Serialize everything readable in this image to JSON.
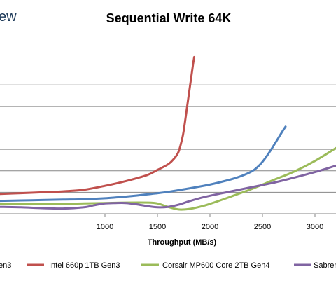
{
  "brand_fragment": "ew",
  "chart_data": {
    "type": "line",
    "title": "Sequential Write 64K",
    "xlabel": "Throughput (MB/s)",
    "ylabel": "",
    "xlim": [
      0,
      3200
    ],
    "x_ticks": [
      1000,
      1500,
      2000,
      2500,
      3000
    ],
    "x_tick_labels": [
      "1000",
      "1500",
      "2000",
      "2500",
      "3000"
    ],
    "grid": "horizontal",
    "legend_position": "bottom",
    "series": [
      {
        "name": "...en3",
        "display_label": "en3",
        "color": "#4f81bd",
        "x": [
          0,
          200,
          400,
          600,
          800,
          1000,
          1200,
          1400,
          1600,
          1800,
          2000,
          2200,
          2300,
          2400,
          2450,
          2500,
          2560,
          2620,
          2680,
          2720
        ],
        "y": [
          0.6,
          0.62,
          0.64,
          0.66,
          0.68,
          0.72,
          0.8,
          0.9,
          1.02,
          1.18,
          1.36,
          1.6,
          1.76,
          1.98,
          2.16,
          2.42,
          2.82,
          3.28,
          3.76,
          4.06
        ]
      },
      {
        "name": "Intel 660p 1TB Gen3",
        "display_label": "Intel 660p 1TB Gen3",
        "color": "#c0504d",
        "x": [
          0,
          200,
          400,
          600,
          800,
          1000,
          1200,
          1400,
          1500,
          1600,
          1650,
          1700,
          1740,
          1760,
          1780,
          1800,
          1820,
          1840,
          1850
        ],
        "y": [
          0.92,
          0.96,
          1.0,
          1.04,
          1.12,
          1.3,
          1.52,
          1.8,
          2.04,
          2.3,
          2.52,
          2.88,
          3.6,
          4.2,
          4.9,
          5.6,
          6.3,
          7.0,
          7.3
        ]
      },
      {
        "name": "Corsair MP600 Core 2TB Gen4",
        "display_label": "Corsair MP600 Core 2TB Gen4",
        "color": "#9bbb59",
        "x": [
          0,
          200,
          400,
          600,
          800,
          1000,
          1200,
          1400,
          1500,
          1600,
          1700,
          1800,
          1900,
          2000,
          2200,
          2400,
          2600,
          2800,
          3000,
          3200
        ],
        "y": [
          0.46,
          0.46,
          0.46,
          0.46,
          0.48,
          0.5,
          0.52,
          0.52,
          0.48,
          0.32,
          0.2,
          0.22,
          0.32,
          0.46,
          0.8,
          1.16,
          1.56,
          1.96,
          2.46,
          3.06
        ]
      },
      {
        "name": "Sabrent...",
        "display_label": "Sabren",
        "color": "#8064a2",
        "x": [
          0,
          200,
          400,
          600,
          800,
          900,
          1000,
          1100,
          1200,
          1300,
          1400,
          1500,
          1600,
          1700,
          1800,
          1900,
          2000,
          2200,
          2400,
          2600,
          2800,
          3000,
          3200
        ],
        "y": [
          0.32,
          0.3,
          0.26,
          0.24,
          0.3,
          0.4,
          0.48,
          0.5,
          0.5,
          0.44,
          0.36,
          0.3,
          0.32,
          0.42,
          0.58,
          0.72,
          0.84,
          1.04,
          1.24,
          1.44,
          1.68,
          1.94,
          2.24
        ]
      }
    ]
  }
}
